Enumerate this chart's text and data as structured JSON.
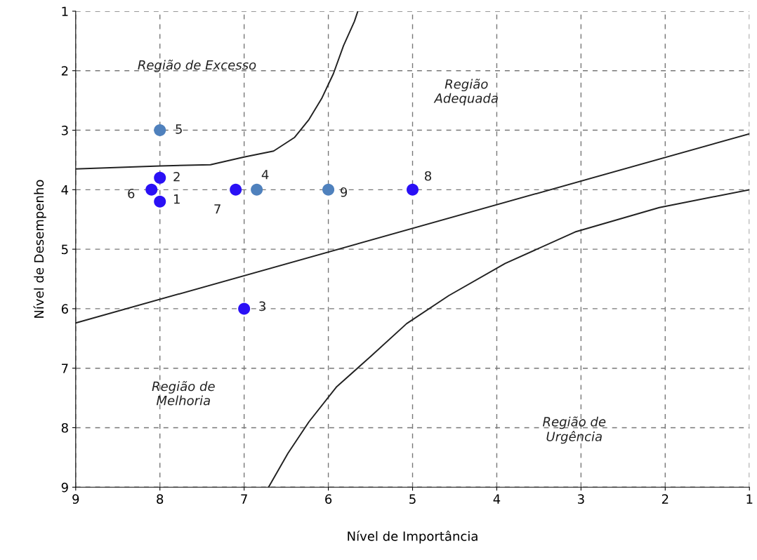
{
  "chart_data": {
    "type": "scatter",
    "xlabel": "Nível de Importância",
    "ylabel": "Nível de Desempenho",
    "xlim": [
      9,
      1
    ],
    "ylim": [
      9,
      1
    ],
    "xticks": [
      9,
      8,
      7,
      6,
      5,
      4,
      3,
      2,
      1
    ],
    "yticks": [
      1,
      2,
      3,
      4,
      5,
      6,
      7,
      8,
      9
    ],
    "grid": true,
    "series": [
      {
        "marker": "circle",
        "x": [
          8,
          8,
          7,
          6.85,
          8,
          8.1,
          7.1,
          5,
          6
        ],
        "values": [
          4.2,
          3.8,
          6,
          4,
          3,
          4,
          4,
          4,
          4
        ],
        "colors": [
          "#2a10f5",
          "#2a10f5",
          "#2a10f5",
          "#4f81bd",
          "#4f81bd",
          "#2a10f5",
          "#2a10f5",
          "#2a10f5",
          "#4f81bd"
        ]
      },
      {
        "type": "line",
        "marker": "none",
        "color": "#222222",
        "x": [
          9,
          8,
          7.4,
          7,
          6.65,
          6.4,
          6.23,
          6.08,
          5.94,
          5.82,
          5.69,
          5.65
        ],
        "values": [
          3.65,
          3.6,
          3.58,
          3.45,
          3.35,
          3.12,
          2.82,
          2.47,
          2.05,
          1.58,
          1.17,
          1
        ]
      },
      {
        "type": "line",
        "marker": "none",
        "color": "#222222",
        "x": [
          9,
          1
        ],
        "values": [
          6.24,
          3.06
        ]
      },
      {
        "type": "line",
        "marker": "none",
        "color": "#222222",
        "x": [
          6.71,
          6.48,
          6.23,
          5.9,
          5.48,
          5.07,
          4.57,
          3.9,
          3.07,
          2.07,
          1
        ],
        "values": [
          9,
          8.43,
          7.9,
          7.31,
          6.78,
          6.25,
          5.78,
          5.24,
          4.71,
          4.3,
          4
        ]
      }
    ],
    "annotations": [
      "Região de Excesso",
      "Região\nAdequada",
      "Região de\nMelhoria",
      "Região de\nUrgência",
      {
        "text": "1",
        "x": 8,
        "y": 4.2
      },
      {
        "text": "2",
        "x": 8,
        "y": 3.8
      },
      {
        "text": "3",
        "x": 7,
        "y": 6
      },
      {
        "text": "4",
        "x": 6.85,
        "y": 4
      },
      {
        "text": "5",
        "x": 8,
        "y": 3
      },
      {
        "text": "6",
        "x": 8.1,
        "y": 4
      },
      {
        "text": "7",
        "x": 7.1,
        "y": 4
      },
      {
        "text": "8",
        "x": 5,
        "y": 4
      },
      {
        "text": "9",
        "x": 6,
        "y": 4
      }
    ]
  }
}
